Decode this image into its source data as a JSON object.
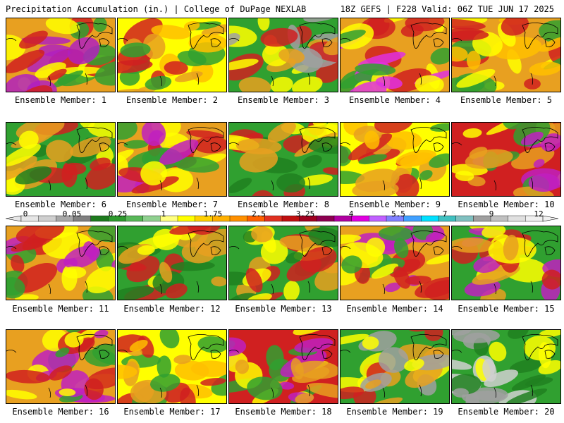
{
  "header": {
    "left_title": "Precipitation Accumulation (in.) | College of DuPage NEXLAB",
    "right_title": "18Z GEFS | F228 Valid: 06Z TUE JUN 17 2025"
  },
  "members": [
    {
      "label": "Ensemble Member: 1",
      "palette": [
        "#e8a020",
        "#ffff00",
        "#d02020",
        "#30a030",
        "#b020c0"
      ]
    },
    {
      "label": "Ensemble Member: 2",
      "palette": [
        "#ffff00",
        "#e8a020",
        "#30a030",
        "#d02020",
        "#ffc000"
      ]
    },
    {
      "label": "Ensemble Member: 3",
      "palette": [
        "#30a030",
        "#ffff00",
        "#e8a020",
        "#d02020",
        "#a0a0a0"
      ]
    },
    {
      "label": "Ensemble Member: 4",
      "palette": [
        "#e8a020",
        "#30a030",
        "#ffff00",
        "#d02020",
        "#e030e0"
      ]
    },
    {
      "label": "Ensemble Member: 5",
      "palette": [
        "#e8a020",
        "#ffff00",
        "#d02020",
        "#30a030",
        "#ffc000"
      ]
    },
    {
      "label": "Ensemble Member: 6",
      "palette": [
        "#30a030",
        "#ffff00",
        "#e8a020",
        "#d02020",
        "#208020"
      ]
    },
    {
      "label": "Ensemble Member: 7",
      "palette": [
        "#e8a020",
        "#d02020",
        "#ffff00",
        "#30a030",
        "#c020c0"
      ]
    },
    {
      "label": "Ensemble Member: 8",
      "palette": [
        "#30a030",
        "#e8a020",
        "#d02020",
        "#ffff00",
        "#208020"
      ]
    },
    {
      "label": "Ensemble Member: 9",
      "palette": [
        "#ffff00",
        "#e8a020",
        "#30a030",
        "#d02020",
        "#ffc000"
      ]
    },
    {
      "label": "Ensemble Member: 10",
      "palette": [
        "#d02020",
        "#e8a020",
        "#c020c0",
        "#ffff00",
        "#30a030"
      ]
    },
    {
      "label": "Ensemble Member: 11",
      "palette": [
        "#e8a020",
        "#d02020",
        "#ffff00",
        "#c020c0",
        "#30a030"
      ]
    },
    {
      "label": "Ensemble Member: 12",
      "palette": [
        "#30a030",
        "#e8a020",
        "#d02020",
        "#ffff00",
        "#208020"
      ]
    },
    {
      "label": "Ensemble Member: 13",
      "palette": [
        "#30a030",
        "#ffff00",
        "#e8a020",
        "#208020",
        "#d02020"
      ]
    },
    {
      "label": "Ensemble Member: 14",
      "palette": [
        "#e8a020",
        "#d02020",
        "#30a030",
        "#c020c0",
        "#ffff00"
      ]
    },
    {
      "label": "Ensemble Member: 15",
      "palette": [
        "#30a030",
        "#e8a020",
        "#d02020",
        "#c020c0",
        "#ffff00"
      ]
    },
    {
      "label": "Ensemble Member: 16",
      "palette": [
        "#e8a020",
        "#ffff00",
        "#d02020",
        "#30a030",
        "#c020c0"
      ]
    },
    {
      "label": "Ensemble Member: 17",
      "palette": [
        "#ffff00",
        "#e8a020",
        "#30a030",
        "#d02020",
        "#ffc000"
      ]
    },
    {
      "label": "Ensemble Member: 18",
      "palette": [
        "#d02020",
        "#e8a020",
        "#30a030",
        "#ffff00",
        "#c020c0"
      ]
    },
    {
      "label": "Ensemble Member: 19",
      "palette": [
        "#30a030",
        "#ffff00",
        "#e8a020",
        "#a0a0a0",
        "#d02020"
      ]
    },
    {
      "label": "Ensemble Member: 20",
      "palette": [
        "#30a030",
        "#208020",
        "#a0a0a0",
        "#ffff00",
        "#d0d0d0"
      ]
    }
  ],
  "colorbar": {
    "labels": [
      "0",
      "0.05",
      "0.25",
      "1",
      "1.75",
      "2.5",
      "3.25",
      "4",
      "5.5",
      "7",
      "9",
      "12"
    ],
    "colors": [
      "#e6e6e6",
      "#cfcfcf",
      "#a8a8a8",
      "#808080",
      "#1e7a1e",
      "#2e9a2e",
      "#58b858",
      "#8fd08f",
      "#ffff80",
      "#ffff00",
      "#ffd000",
      "#ffb000",
      "#ff9000",
      "#ff6000",
      "#e03020",
      "#c01010",
      "#a00020",
      "#8c0050",
      "#b000a0",
      "#e000e0",
      "#c060ff",
      "#8080ff",
      "#40a0ff",
      "#00e0ff",
      "#40c0c0",
      "#80c0c0",
      "#a0a0a0",
      "#c0c0c0",
      "#e0e0e0",
      "#f0f0f0"
    ]
  }
}
